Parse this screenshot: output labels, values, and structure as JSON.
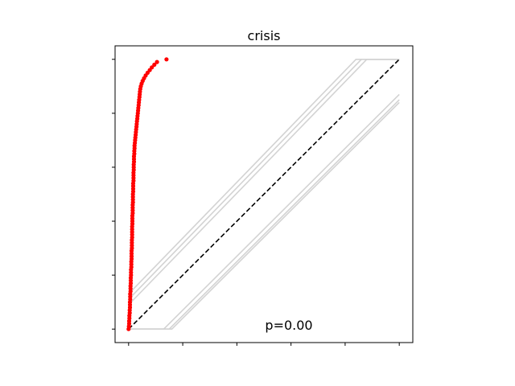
{
  "chart_data": {
    "type": "scatter",
    "title": "crisis",
    "xlabel": "",
    "ylabel": "",
    "xlim": [
      -0.05,
      1.05
    ],
    "ylim": [
      -0.05,
      1.05
    ],
    "grid": false,
    "tick_labels_shown": false,
    "x_ticks": [
      0,
      0.2,
      0.4,
      0.6,
      0.8,
      1.0
    ],
    "y_ticks": [
      0,
      0.2,
      0.4,
      0.6,
      0.8,
      1.0
    ],
    "annotation": {
      "text": "p=0.00"
    },
    "reference_line": {
      "style": "dashed",
      "color": "#000000",
      "from": [
        0,
        0
      ],
      "to": [
        1,
        1
      ]
    },
    "envelope_lines": {
      "color": "#d3d3d3",
      "lines": [
        [
          [
            0,
            0.13
          ],
          [
            0.84,
            1.0
          ],
          [
            1.0,
            1.0
          ]
        ],
        [
          [
            0,
            0.11
          ],
          [
            0.86,
            1.0
          ],
          [
            1.0,
            1.0
          ]
        ],
        [
          [
            0,
            0.09
          ],
          [
            0.88,
            1.0
          ],
          [
            1.0,
            1.0
          ]
        ],
        [
          [
            0,
            0.0
          ],
          [
            0.13,
            0.0
          ],
          [
            1.0,
            0.87
          ]
        ],
        [
          [
            0,
            0.0
          ],
          [
            0.15,
            0.0
          ],
          [
            1.0,
            0.85
          ]
        ],
        [
          [
            0,
            0.0
          ],
          [
            0.16,
            0.0
          ],
          [
            1.0,
            0.84
          ]
        ]
      ]
    },
    "series": [
      {
        "color": "#ff0000",
        "points": [
          [
            0.0,
            0.0
          ],
          [
            0.001,
            0.01
          ],
          [
            0.002,
            0.02
          ],
          [
            0.002,
            0.03
          ],
          [
            0.003,
            0.04
          ],
          [
            0.003,
            0.05
          ],
          [
            0.004,
            0.06
          ],
          [
            0.004,
            0.07
          ],
          [
            0.005,
            0.08
          ],
          [
            0.005,
            0.09
          ],
          [
            0.005,
            0.1
          ],
          [
            0.006,
            0.11
          ],
          [
            0.006,
            0.12
          ],
          [
            0.006,
            0.13
          ],
          [
            0.007,
            0.14
          ],
          [
            0.007,
            0.15
          ],
          [
            0.007,
            0.16
          ],
          [
            0.008,
            0.17
          ],
          [
            0.008,
            0.18
          ],
          [
            0.008,
            0.19
          ],
          [
            0.009,
            0.2
          ],
          [
            0.009,
            0.21
          ],
          [
            0.009,
            0.22
          ],
          [
            0.01,
            0.23
          ],
          [
            0.01,
            0.24
          ],
          [
            0.01,
            0.25
          ],
          [
            0.011,
            0.26
          ],
          [
            0.011,
            0.27
          ],
          [
            0.011,
            0.28
          ],
          [
            0.011,
            0.29
          ],
          [
            0.012,
            0.3
          ],
          [
            0.012,
            0.31
          ],
          [
            0.012,
            0.32
          ],
          [
            0.012,
            0.33
          ],
          [
            0.013,
            0.34
          ],
          [
            0.013,
            0.35
          ],
          [
            0.013,
            0.36
          ],
          [
            0.013,
            0.37
          ],
          [
            0.013,
            0.38
          ],
          [
            0.014,
            0.39
          ],
          [
            0.014,
            0.4
          ],
          [
            0.014,
            0.41
          ],
          [
            0.014,
            0.42
          ],
          [
            0.015,
            0.43
          ],
          [
            0.015,
            0.44
          ],
          [
            0.015,
            0.45
          ],
          [
            0.015,
            0.46
          ],
          [
            0.016,
            0.47
          ],
          [
            0.016,
            0.48
          ],
          [
            0.016,
            0.49
          ],
          [
            0.016,
            0.5
          ],
          [
            0.017,
            0.51
          ],
          [
            0.017,
            0.52
          ],
          [
            0.017,
            0.53
          ],
          [
            0.017,
            0.54
          ],
          [
            0.018,
            0.55
          ],
          [
            0.018,
            0.56
          ],
          [
            0.018,
            0.57
          ],
          [
            0.018,
            0.58
          ],
          [
            0.019,
            0.59
          ],
          [
            0.019,
            0.6
          ],
          [
            0.019,
            0.61
          ],
          [
            0.02,
            0.62
          ],
          [
            0.02,
            0.63
          ],
          [
            0.02,
            0.64
          ],
          [
            0.021,
            0.65
          ],
          [
            0.021,
            0.66
          ],
          [
            0.022,
            0.67
          ],
          [
            0.022,
            0.68
          ],
          [
            0.023,
            0.69
          ],
          [
            0.024,
            0.7
          ],
          [
            0.025,
            0.71
          ],
          [
            0.026,
            0.72
          ],
          [
            0.027,
            0.73
          ],
          [
            0.028,
            0.74
          ],
          [
            0.029,
            0.75
          ],
          [
            0.03,
            0.76
          ],
          [
            0.031,
            0.77
          ],
          [
            0.032,
            0.78
          ],
          [
            0.033,
            0.79
          ],
          [
            0.034,
            0.8
          ],
          [
            0.035,
            0.81
          ],
          [
            0.036,
            0.82
          ],
          [
            0.037,
            0.83
          ],
          [
            0.038,
            0.84
          ],
          [
            0.039,
            0.85
          ],
          [
            0.04,
            0.86
          ],
          [
            0.041,
            0.87
          ],
          [
            0.042,
            0.88
          ],
          [
            0.043,
            0.89
          ],
          [
            0.045,
            0.9
          ],
          [
            0.048,
            0.91
          ],
          [
            0.052,
            0.92
          ],
          [
            0.057,
            0.93
          ],
          [
            0.063,
            0.94
          ],
          [
            0.07,
            0.95
          ],
          [
            0.078,
            0.96
          ],
          [
            0.086,
            0.97
          ],
          [
            0.095,
            0.98
          ],
          [
            0.105,
            0.99
          ],
          [
            0.14,
            1.0
          ]
        ]
      }
    ]
  }
}
